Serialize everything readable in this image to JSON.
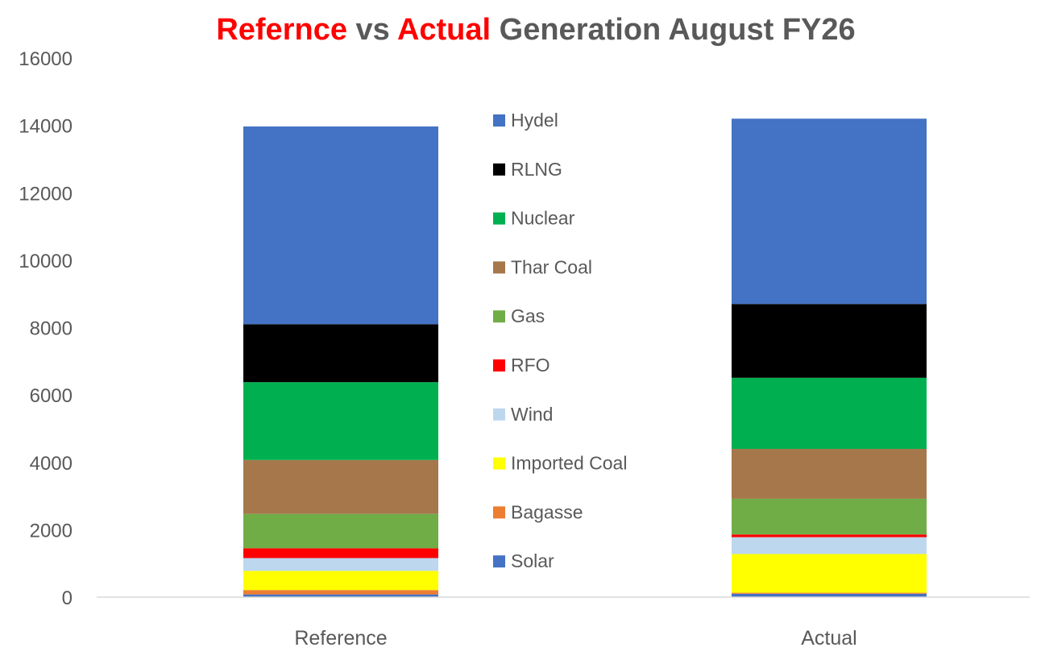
{
  "title": {
    "part1": "Refernce",
    "part2": " vs ",
    "part3": "Actual",
    "part4": " Generation August FY26"
  },
  "chart_data": {
    "type": "bar",
    "stacked": true,
    "title": "Refernce vs Actual Generation August FY26",
    "xlabel": "",
    "ylabel": "",
    "categories": [
      "Reference",
      "Actual"
    ],
    "ylim": [
      0,
      16000
    ],
    "yticks": [
      0,
      2000,
      4000,
      6000,
      8000,
      10000,
      12000,
      14000,
      16000
    ],
    "grid": false,
    "legend_position": "center",
    "series": [
      {
        "name": "Solar",
        "color": "#4472c4",
        "values": [
          80,
          100
        ]
      },
      {
        "name": "Bagasse",
        "color": "#ed7d31",
        "values": [
          130,
          30
        ]
      },
      {
        "name": "Imported Coal",
        "color": "#ffff00",
        "values": [
          570,
          1150
        ]
      },
      {
        "name": "Wind",
        "color": "#bdd7ee",
        "values": [
          380,
          500
        ]
      },
      {
        "name": "RFO",
        "color": "#ff0000",
        "values": [
          290,
          80
        ]
      },
      {
        "name": "Gas",
        "color": "#70ad47",
        "values": [
          1020,
          1060
        ]
      },
      {
        "name": "Thar Coal",
        "color": "#a5774b",
        "values": [
          1600,
          1480
        ]
      },
      {
        "name": "Nuclear",
        "color": "#00b050",
        "values": [
          2310,
          2110
        ]
      },
      {
        "name": "RLNG",
        "color": "#000000",
        "values": [
          1720,
          2190
        ]
      },
      {
        "name": "Hydel",
        "color": "#4472c4",
        "values": [
          5870,
          5500
        ]
      }
    ]
  }
}
